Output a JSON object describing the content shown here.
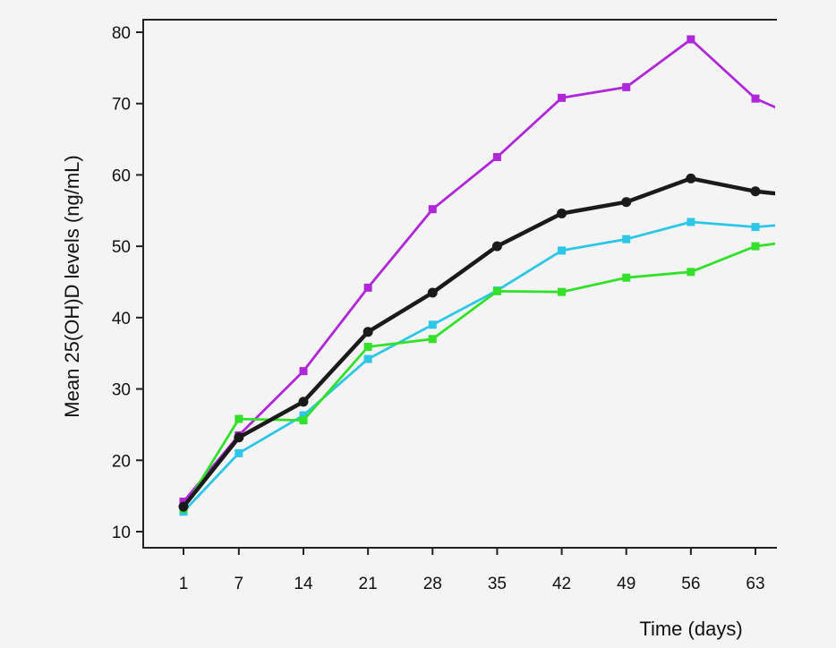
{
  "chart_data": {
    "type": "line",
    "title": "",
    "xlabel": "Time (days)",
    "ylabel": "Mean 25(OH)D levels (ng/mL)",
    "x": [
      1,
      7,
      14,
      21,
      28,
      35,
      42,
      49,
      56,
      63
    ],
    "x_tick_labels": [
      "1",
      "7",
      "14",
      "21",
      "28",
      "35",
      "42",
      "49",
      "56",
      "63"
    ],
    "y_ticks": [
      10,
      20,
      30,
      40,
      50,
      60,
      70,
      80
    ],
    "y_tick_labels": [
      "10",
      "20",
      "30",
      "40",
      "50",
      "60",
      "70",
      "80"
    ],
    "ylim": [
      8,
      82
    ],
    "grid": false,
    "legend": "none",
    "series": [
      {
        "color": "#b026d9",
        "values": [
          14.2,
          23.5,
          32.5,
          44.2,
          55.2,
          62.5,
          70.8,
          72.3,
          79.0,
          70.7
        ],
        "end": {
          "x": 66,
          "y": 69.0
        }
      },
      {
        "color": "#1a1a1a",
        "bold": true,
        "values": [
          13.5,
          23.2,
          28.2,
          38.0,
          43.5,
          50.0,
          54.6,
          56.2,
          59.5,
          57.7
        ],
        "end": {
          "x": 66,
          "y": 57.3
        }
      },
      {
        "color": "#2ec6e6",
        "values": [
          12.8,
          21.0,
          26.3,
          34.2,
          39.0,
          43.8,
          49.4,
          51.0,
          53.4,
          52.7
        ],
        "end": {
          "x": 66,
          "y": 53.0
        }
      },
      {
        "color": "#33e02a",
        "values": [
          13.2,
          25.8,
          25.6,
          35.9,
          37.0,
          43.7,
          43.6,
          45.6,
          46.4,
          50.0
        ],
        "end": {
          "x": 66,
          "y": 50.5
        }
      }
    ]
  }
}
